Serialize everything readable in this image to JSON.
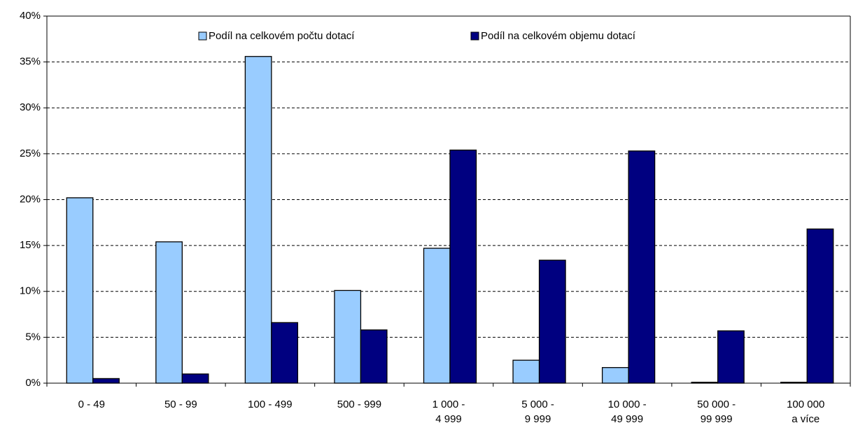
{
  "chart_data": {
    "type": "bar",
    "categories": [
      "0 - 49",
      "50 - 99",
      "100 - 499",
      "500 - 999",
      "1 000 - 4 999",
      "5 000 - 9 999",
      "10 000 - 49 999",
      "50 000 - 99 999",
      "100 000 a více"
    ],
    "series": [
      {
        "name": "Podíl na celkovém počtu dotací",
        "color": "#99ccff",
        "values": [
          20.2,
          15.4,
          35.6,
          10.1,
          14.7,
          2.5,
          1.7,
          0.1,
          0.1
        ]
      },
      {
        "name": "Podíl na celkovém objemu dotací",
        "color": "#000080",
        "values": [
          0.5,
          1.0,
          6.6,
          5.8,
          25.4,
          13.4,
          25.3,
          5.7,
          16.8
        ]
      }
    ],
    "ylim": [
      0,
      40
    ],
    "yticks": [
      {
        "value": 0,
        "label": "0%"
      },
      {
        "value": 5,
        "label": "5%"
      },
      {
        "value": 10,
        "label": "10%"
      },
      {
        "value": 15,
        "label": "15%"
      },
      {
        "value": 20,
        "label": "20%"
      },
      {
        "value": 25,
        "label": "25%"
      },
      {
        "value": 30,
        "label": "30%"
      },
      {
        "value": 35,
        "label": "35%"
      },
      {
        "value": 40,
        "label": "40%"
      }
    ],
    "grid": true,
    "legend_position": "top"
  }
}
